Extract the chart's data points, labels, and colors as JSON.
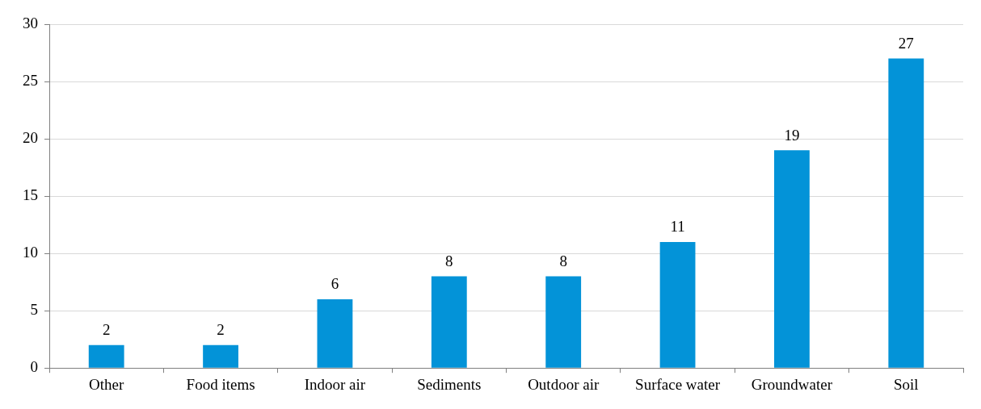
{
  "chart_data": {
    "type": "bar",
    "categories": [
      "Other",
      "Food items",
      "Indoor air",
      "Sediments",
      "Outdoor air",
      "Surface water",
      "Groundwater",
      "Soil"
    ],
    "values": [
      2,
      2,
      6,
      8,
      8,
      11,
      19,
      27
    ],
    "color": "#0393d8",
    "ylim": [
      0,
      30
    ],
    "yticks": [
      0,
      5,
      10,
      15,
      20,
      25,
      30
    ],
    "grid": "y",
    "legend": false,
    "data_labels": true
  }
}
